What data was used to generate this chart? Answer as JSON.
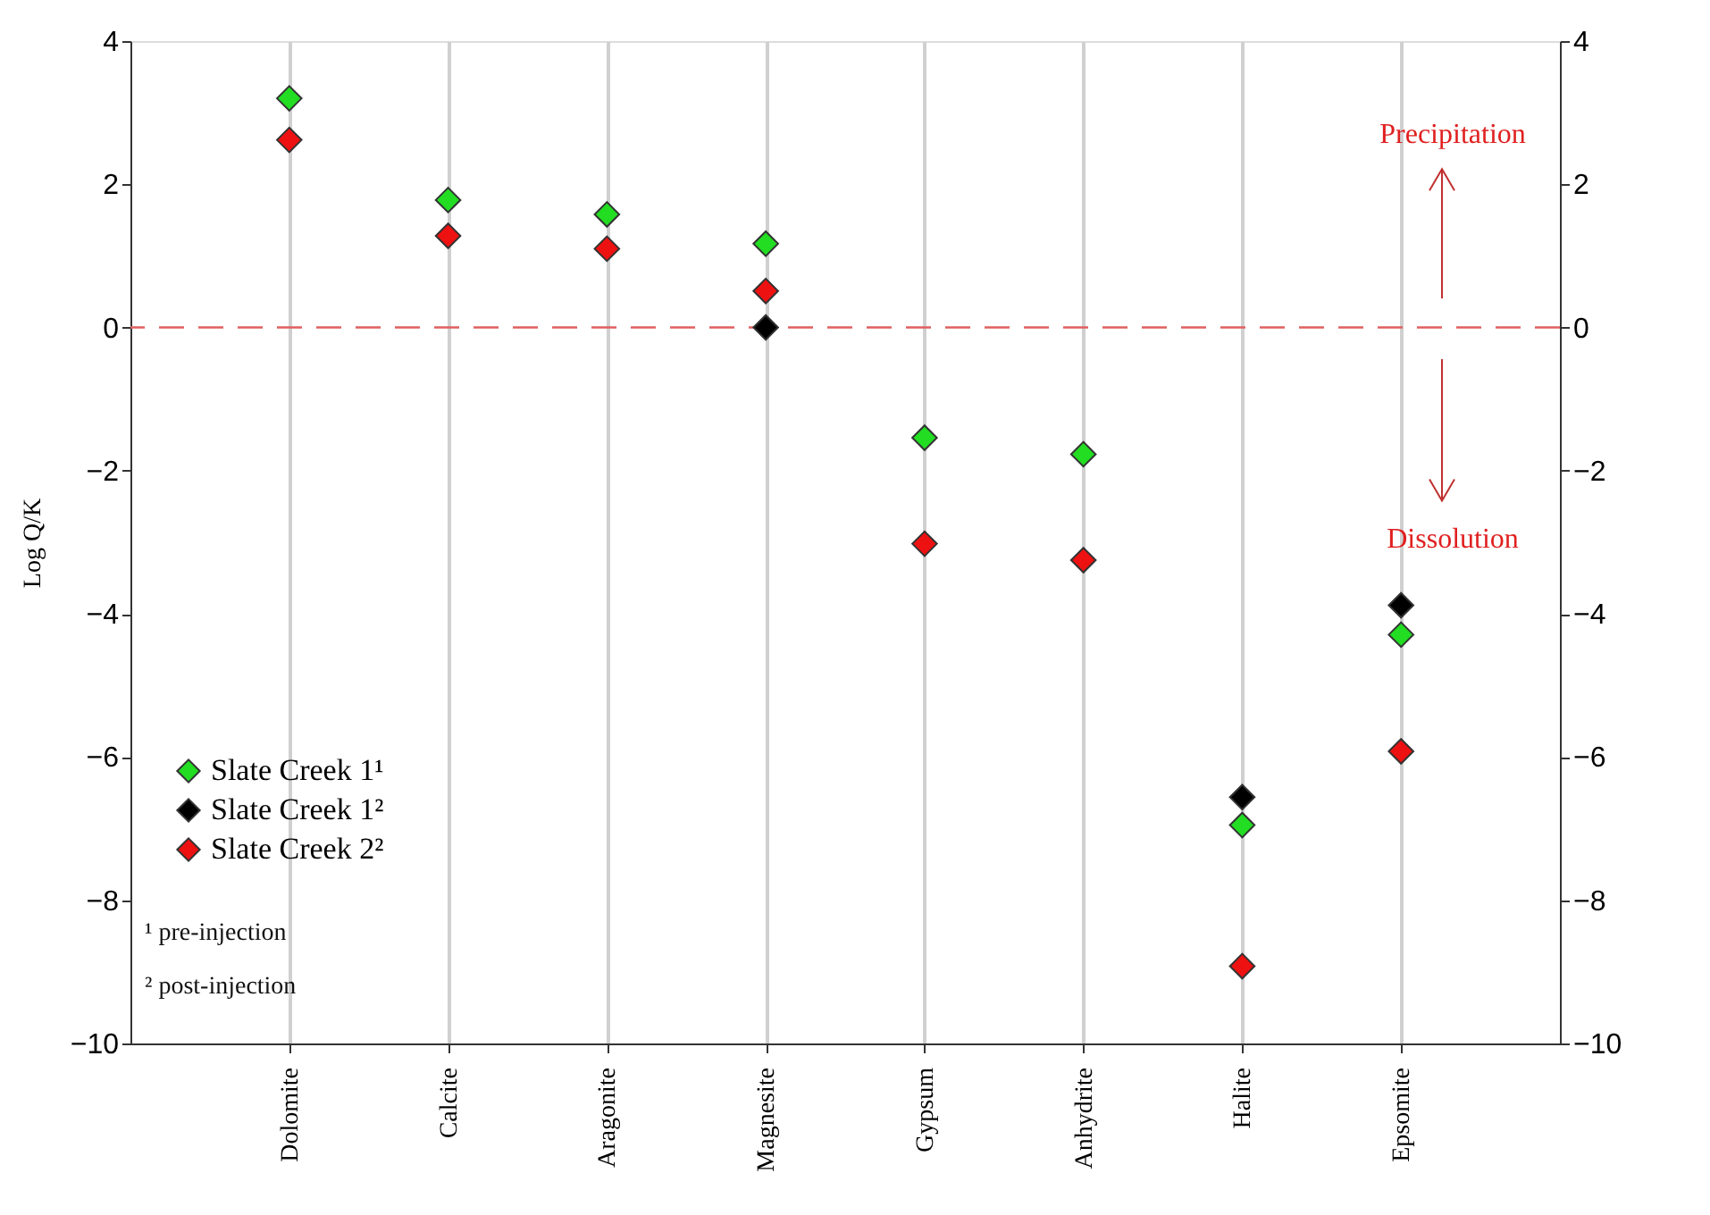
{
  "chart_data": {
    "type": "scatter",
    "ylabel": "Log Q/K",
    "categories": [
      "Dolomite",
      "Calcite",
      "Aragonite",
      "Magnesite",
      "Gypsum",
      "Anhydrite",
      "Halite",
      "Epsomite"
    ],
    "series": [
      {
        "name": "Slate Creek 1¹",
        "color": "#22dd22",
        "values": [
          3.2,
          1.78,
          1.58,
          1.17,
          -1.54,
          -1.77,
          -6.95,
          -4.29
        ]
      },
      {
        "name": "Slate Creek 1²",
        "color": "#000000",
        "values": [
          null,
          null,
          null,
          0,
          null,
          null,
          -6.56,
          -3.88
        ]
      },
      {
        "name": "Slate Creek 2²",
        "color": "#ee1111",
        "values": [
          2.62,
          1.28,
          1.1,
          0.51,
          -3.02,
          -3.25,
          -8.92,
          -5.92
        ]
      }
    ],
    "ylim": [
      -10,
      4
    ],
    "yticks": [
      -10,
      -8,
      -6,
      -4,
      -2,
      0,
      2,
      4
    ],
    "y2lim": [
      -10,
      4
    ],
    "y2ticks": [
      -10,
      -8,
      -6,
      -4,
      -2,
      0,
      2,
      4
    ],
    "ref_lines": [
      {
        "axis": "y",
        "value": 0,
        "color": "#e06060",
        "line_style": "dashed"
      }
    ],
    "annotations": [
      "Precipitation",
      "Dissolution",
      "¹ pre-injection",
      "² post-injection"
    ],
    "grid": "x",
    "legend": "bottom left",
    "marker": "diamond"
  }
}
